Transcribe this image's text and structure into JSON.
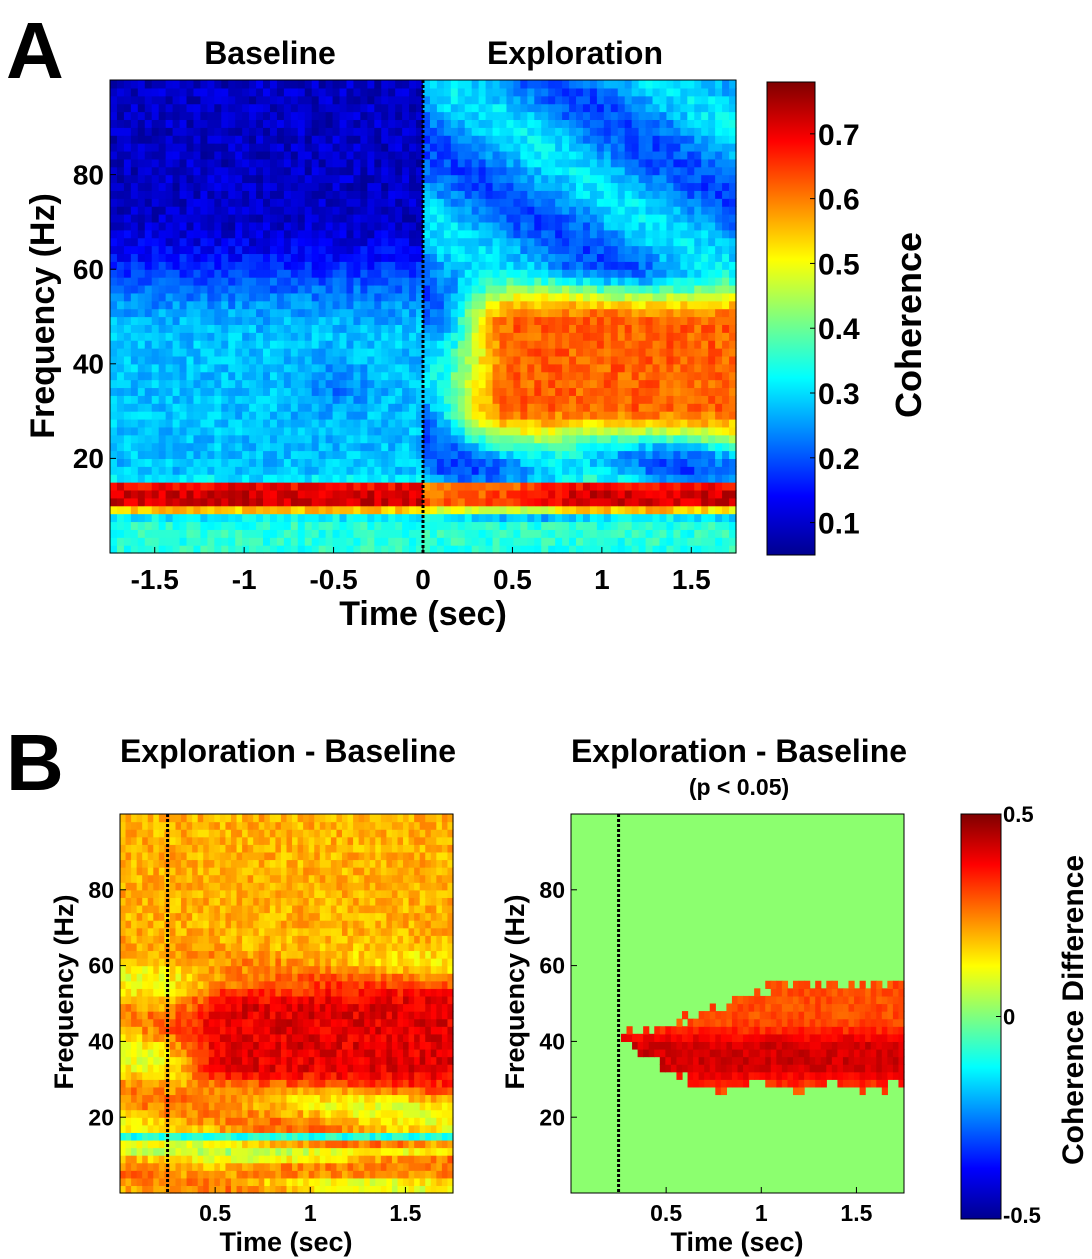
{
  "panel_labels": [
    "A",
    "B"
  ],
  "colors": {
    "background": "#ffffff",
    "sig_mask": "#8cff6f",
    "text": "#000000",
    "event_line": "#000000"
  },
  "chart_data": [
    {
      "id": "A",
      "type": "heatmap",
      "title": "",
      "section_labels": [
        "Baseline",
        "Exploration"
      ],
      "xlabel": "Time (sec)",
      "ylabel": "Frequency (Hz)",
      "xlim": [
        -1.75,
        1.75
      ],
      "ylim": [
        0,
        100
      ],
      "xticks": [
        -1.5,
        -1,
        -0.5,
        0,
        0.5,
        1,
        1.5
      ],
      "xtick_labels": [
        "-1.5",
        "-1",
        "-0.5",
        "0",
        "0.5",
        "1",
        "1.5"
      ],
      "yticks": [
        20,
        40,
        60,
        80
      ],
      "ytick_labels": [
        "20",
        "40",
        "60",
        "80"
      ],
      "event_line_x": 0,
      "colormap": "jet",
      "colorbar": {
        "label": "Coherence",
        "range": [
          0.05,
          0.78
        ],
        "ticks": [
          0.1,
          0.2,
          0.3,
          0.4,
          0.5,
          0.6,
          0.7
        ],
        "tick_labels": [
          "0.1",
          "0.2",
          "0.3",
          "0.4",
          "0.5",
          "0.6",
          "0.7"
        ]
      },
      "features": [
        {
          "region": "theta band",
          "freq_hz": [
            9,
            15
          ],
          "time_sec": [
            -1.75,
            1.75
          ],
          "value": 0.72
        },
        {
          "region": "baseline high-freq",
          "freq_hz": [
            60,
            100
          ],
          "time_sec": [
            -1.75,
            0
          ],
          "value": 0.1
        },
        {
          "region": "baseline mid-freq",
          "freq_hz": [
            16,
            60
          ],
          "time_sec": [
            -1.75,
            0
          ],
          "value": 0.28
        },
        {
          "region": "exploration gamma",
          "freq_hz": [
            25,
            55
          ],
          "time_sec": [
            0.4,
            1.75
          ],
          "value": 0.62
        },
        {
          "region": "exploration high-freq",
          "freq_hz": [
            60,
            100
          ],
          "time_sec": [
            0,
            1.75
          ],
          "value": 0.25
        },
        {
          "region": "low-freq floor",
          "freq_hz": [
            0,
            8
          ],
          "time_sec": [
            -1.75,
            1.75
          ],
          "value": 0.35
        }
      ]
    },
    {
      "id": "B-left",
      "type": "heatmap",
      "title": "Exploration - Baseline",
      "xlabel": "Time (sec)",
      "ylabel": "Frequency (Hz)",
      "xlim": [
        0,
        1.75
      ],
      "ylim": [
        0,
        100
      ],
      "xticks": [
        0.5,
        1,
        1.5
      ],
      "xtick_labels": [
        "0.5",
        "1",
        "1.5"
      ],
      "yticks": [
        20,
        40,
        60,
        80
      ],
      "ytick_labels": [
        "20",
        "40",
        "60",
        "80"
      ],
      "event_line_x": 0.25,
      "colormap": "jet",
      "colorbar_range": [
        -0.5,
        0.5
      ],
      "features": [
        {
          "region": "gamma increase",
          "freq_hz": [
            28,
            55
          ],
          "time_sec": [
            0.3,
            1.75
          ],
          "value": 0.4
        },
        {
          "region": "high-freq increase",
          "freq_hz": [
            60,
            100
          ],
          "time_sec": [
            0,
            1.75
          ],
          "value": 0.2
        },
        {
          "region": "theta dip",
          "freq_hz": [
            14,
            16
          ],
          "time_sec": [
            0,
            1.75
          ],
          "value": -0.1
        },
        {
          "region": "low-freq increase",
          "freq_hz": [
            4,
            8
          ],
          "time_sec": [
            0.4,
            1.75
          ],
          "value": 0.25
        }
      ]
    },
    {
      "id": "B-right",
      "type": "heatmap",
      "title": "Exploration - Baseline",
      "subtitle": "(p < 0.05)",
      "xlabel": "Time (sec)",
      "ylabel": "Frequency (Hz)",
      "xlim": [
        0,
        1.75
      ],
      "ylim": [
        0,
        100
      ],
      "xticks": [
        0.5,
        1,
        1.5
      ],
      "xtick_labels": [
        "0.5",
        "1",
        "1.5"
      ],
      "yticks": [
        20,
        40,
        60,
        80
      ],
      "ytick_labels": [
        "20",
        "40",
        "60",
        "80"
      ],
      "event_line_x": 0.25,
      "colormap": "jet",
      "colorbar_range": [
        -0.5,
        0.5
      ],
      "features": [
        {
          "region": "significant gamma increase",
          "freq_hz": [
            28,
            55
          ],
          "time_sec": [
            0.25,
            1.75
          ],
          "value": 0.45
        }
      ]
    }
  ],
  "colorbar_B": {
    "label": "Coherence Difference",
    "ticks": [
      0.5,
      0,
      -0.5
    ],
    "tick_labels": [
      "0.5",
      "0",
      "-0.5"
    ]
  }
}
